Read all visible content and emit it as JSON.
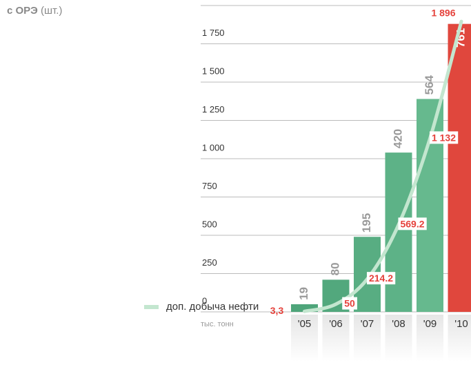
{
  "chart_data": {
    "type": "bar",
    "title": "с ОРЭ",
    "title_unit": "(шт.)",
    "x_label": "тыс. тонн",
    "categories": [
      "'05",
      "'06",
      "'07",
      "'08",
      "'09",
      "'10"
    ],
    "series": [
      {
        "type": "bar",
        "colors": [
          "#4ea57a",
          "#52a87d",
          "#58ad82",
          "#5db287",
          "#66b98e",
          "#e0473d"
        ],
        "values": [
          50,
          210,
          490,
          1040,
          1390,
          1880
        ],
        "bar_labels": [
          19,
          80,
          195,
          420,
          564,
          761
        ]
      },
      {
        "type": "line",
        "name": "доп. добыча нефти",
        "color": "#c3e6cf",
        "values": [
          3.3,
          50,
          214.2,
          569.2,
          1132,
          1896
        ],
        "value_labels": [
          "3,3",
          "50",
          "214.2",
          "569.2",
          "1 132",
          "1 896"
        ]
      }
    ],
    "ylim": [
      0,
      2000
    ],
    "yticks": [
      0,
      250,
      500,
      750,
      {
        "value": 1000,
        "label": "1 000"
      },
      {
        "value": 1250,
        "label": "1 250"
      },
      {
        "value": 1500,
        "label": "1 500"
      },
      {
        "value": 1750,
        "label": "1 750"
      }
    ]
  }
}
